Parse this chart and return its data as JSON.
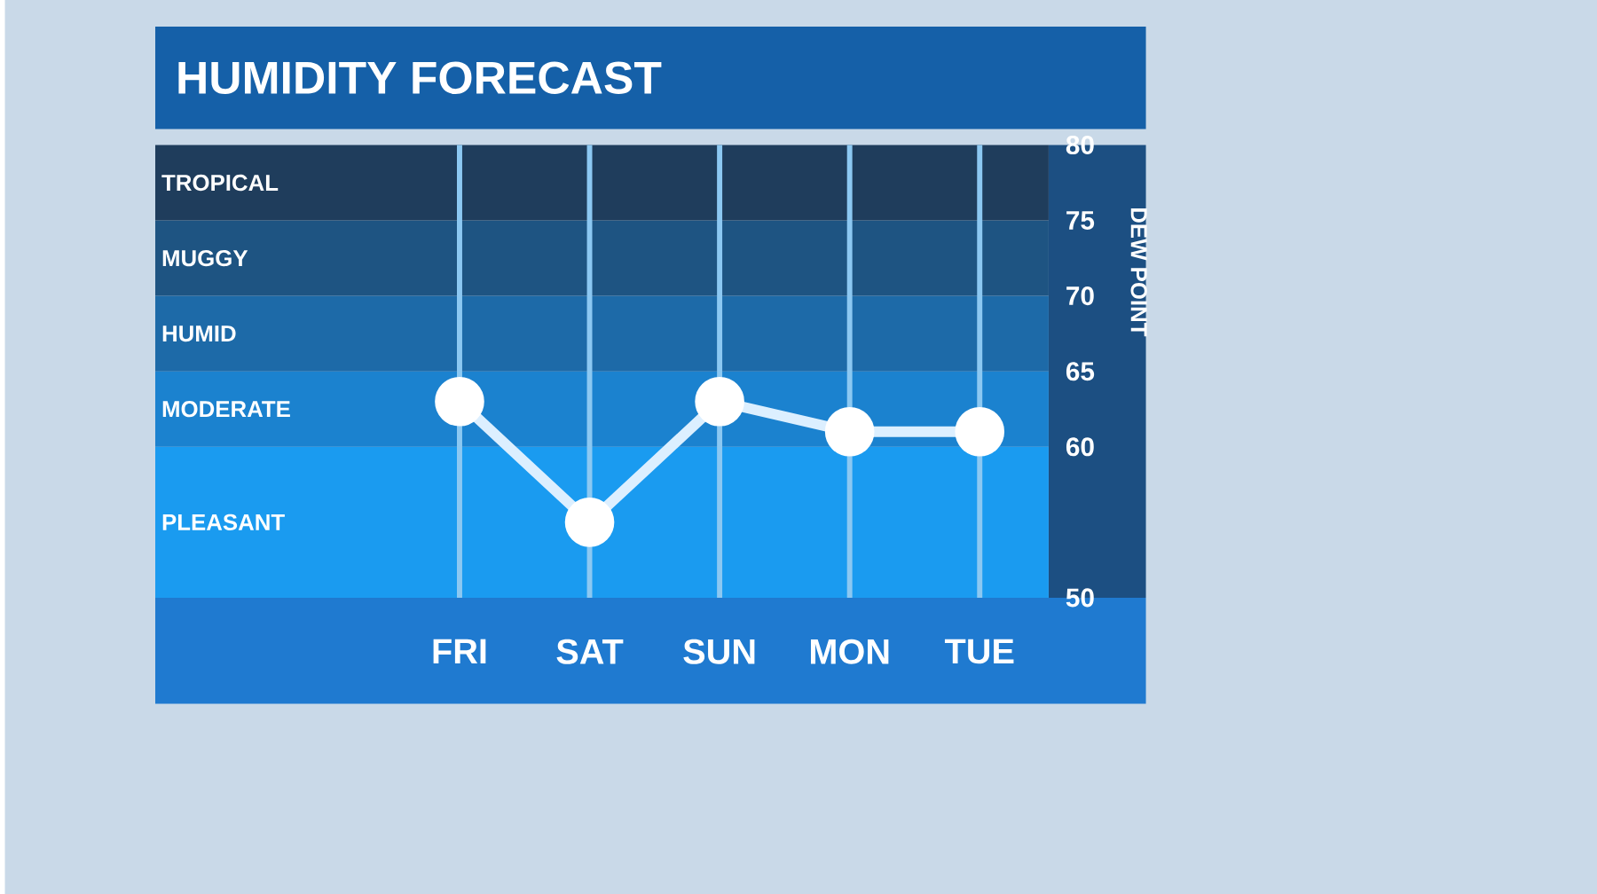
{
  "chart_data": {
    "type": "line",
    "title": "HUMIDITY FORECAST",
    "ylabel": "DEW POINT",
    "categories": [
      "FRI",
      "SAT",
      "SUN",
      "MON",
      "TUE"
    ],
    "series": [
      {
        "color": "#dcefff",
        "values": [
          63,
          55,
          63,
          61,
          61
        ]
      }
    ],
    "ylim": [
      50,
      80
    ],
    "yticks": [
      50,
      60,
      65,
      70,
      75,
      80
    ],
    "bands": [
      {
        "axis": "y",
        "from": 50,
        "to": 60,
        "label": "PLEASANT",
        "color": "#1a9bf0"
      },
      {
        "axis": "y",
        "from": 60,
        "to": 65,
        "label": "MODERATE",
        "color": "#1b82cf"
      },
      {
        "axis": "y",
        "from": 65,
        "to": 70,
        "label": "HUMID",
        "color": "#1d6aa8"
      },
      {
        "axis": "y",
        "from": 70,
        "to": 75,
        "label": "MUGGY",
        "color": "#1e5482"
      },
      {
        "axis": "y",
        "from": 75,
        "to": 80,
        "label": "TROPICAL",
        "color": "#1f3d5c"
      }
    ],
    "grid": "x",
    "marker": "circle",
    "line_style": "solid"
  }
}
